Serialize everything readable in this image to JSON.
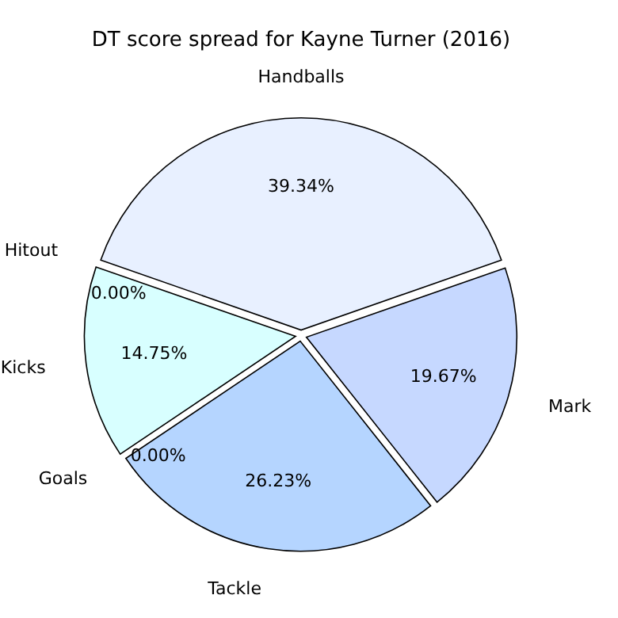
{
  "chart_data": {
    "type": "pie",
    "title": "DT score spread for Kayne Turner (2016)",
    "categories": [
      "Handballs",
      "Mark",
      "Tackle",
      "Goals",
      "Kicks",
      "Hitout"
    ],
    "values": [
      39.34,
      19.67,
      26.23,
      0.0,
      14.75,
      0.0
    ],
    "colors": [
      "#e8f0ff",
      "#c6d8ff",
      "#b5d5ff",
      "#c8f0ff",
      "#d8ffff",
      "#e8ffff"
    ],
    "value_labels": [
      "39.34%",
      "19.67%",
      "26.23%",
      "0.00%",
      "14.75%",
      "0.00%"
    ],
    "legend": false
  }
}
